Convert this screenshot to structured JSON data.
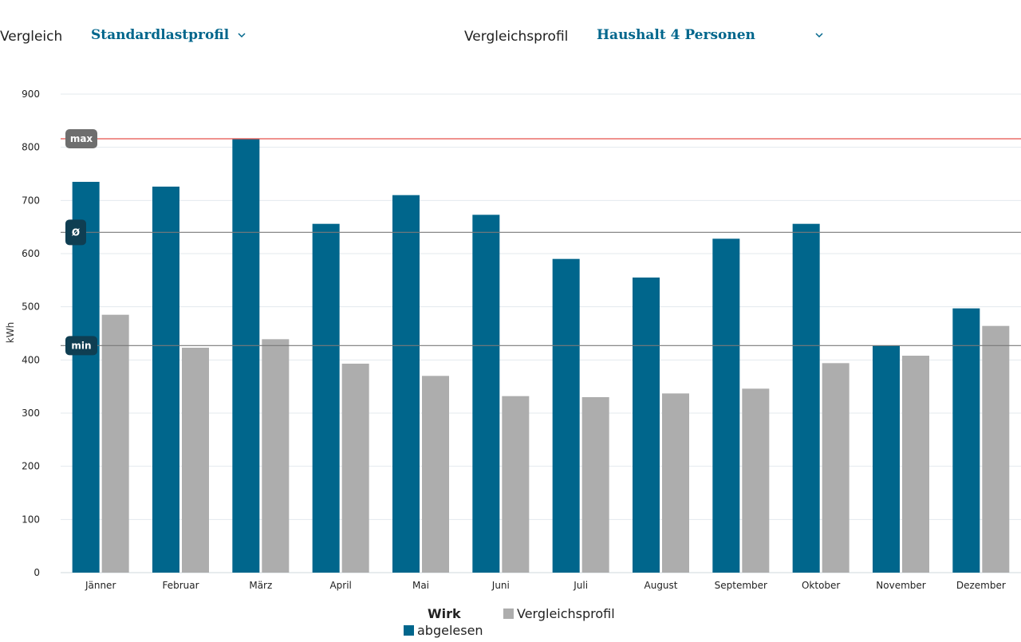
{
  "filters": {
    "comparison_label": "Vergleich",
    "comparison_value": "Standardlastprofil",
    "profile_label": "Vergleichsprofil",
    "profile_value": "Haushalt 4 Personen"
  },
  "colors": {
    "series_primary": "#00668c",
    "series_secondary": "#adadad",
    "max_line": "#e8524a",
    "avg_line": "#7a7a7a",
    "min_line": "#7a7a7a",
    "max_badge": "#6e6e6e",
    "avg_badge": "#0f3e52",
    "min_badge": "#0f3e52"
  },
  "chart_data": {
    "type": "bar",
    "ylabel": "kWh",
    "ylim": [
      0,
      900
    ],
    "yticks": [
      0,
      100,
      200,
      300,
      400,
      500,
      600,
      700,
      800,
      900
    ],
    "grid": true,
    "categories": [
      "Jänner",
      "Februar",
      "März",
      "April",
      "Mai",
      "Juni",
      "Juli",
      "August",
      "September",
      "Oktober",
      "November",
      "Dezember"
    ],
    "series": [
      {
        "name": "abgelesen",
        "values": [
          735,
          726,
          816,
          656,
          710,
          673,
          590,
          555,
          628,
          656,
          427,
          497
        ]
      },
      {
        "name": "Vergleichsprofil",
        "values": [
          485,
          423,
          439,
          393,
          370,
          332,
          330,
          337,
          346,
          394,
          408,
          464
        ]
      }
    ],
    "reference_lines": [
      {
        "label": "max",
        "value": 816
      },
      {
        "label": "Ø",
        "value": 640
      },
      {
        "label": "min",
        "value": 427
      }
    ],
    "legend": {
      "title": "Wirk",
      "position": "bottom-center"
    }
  }
}
